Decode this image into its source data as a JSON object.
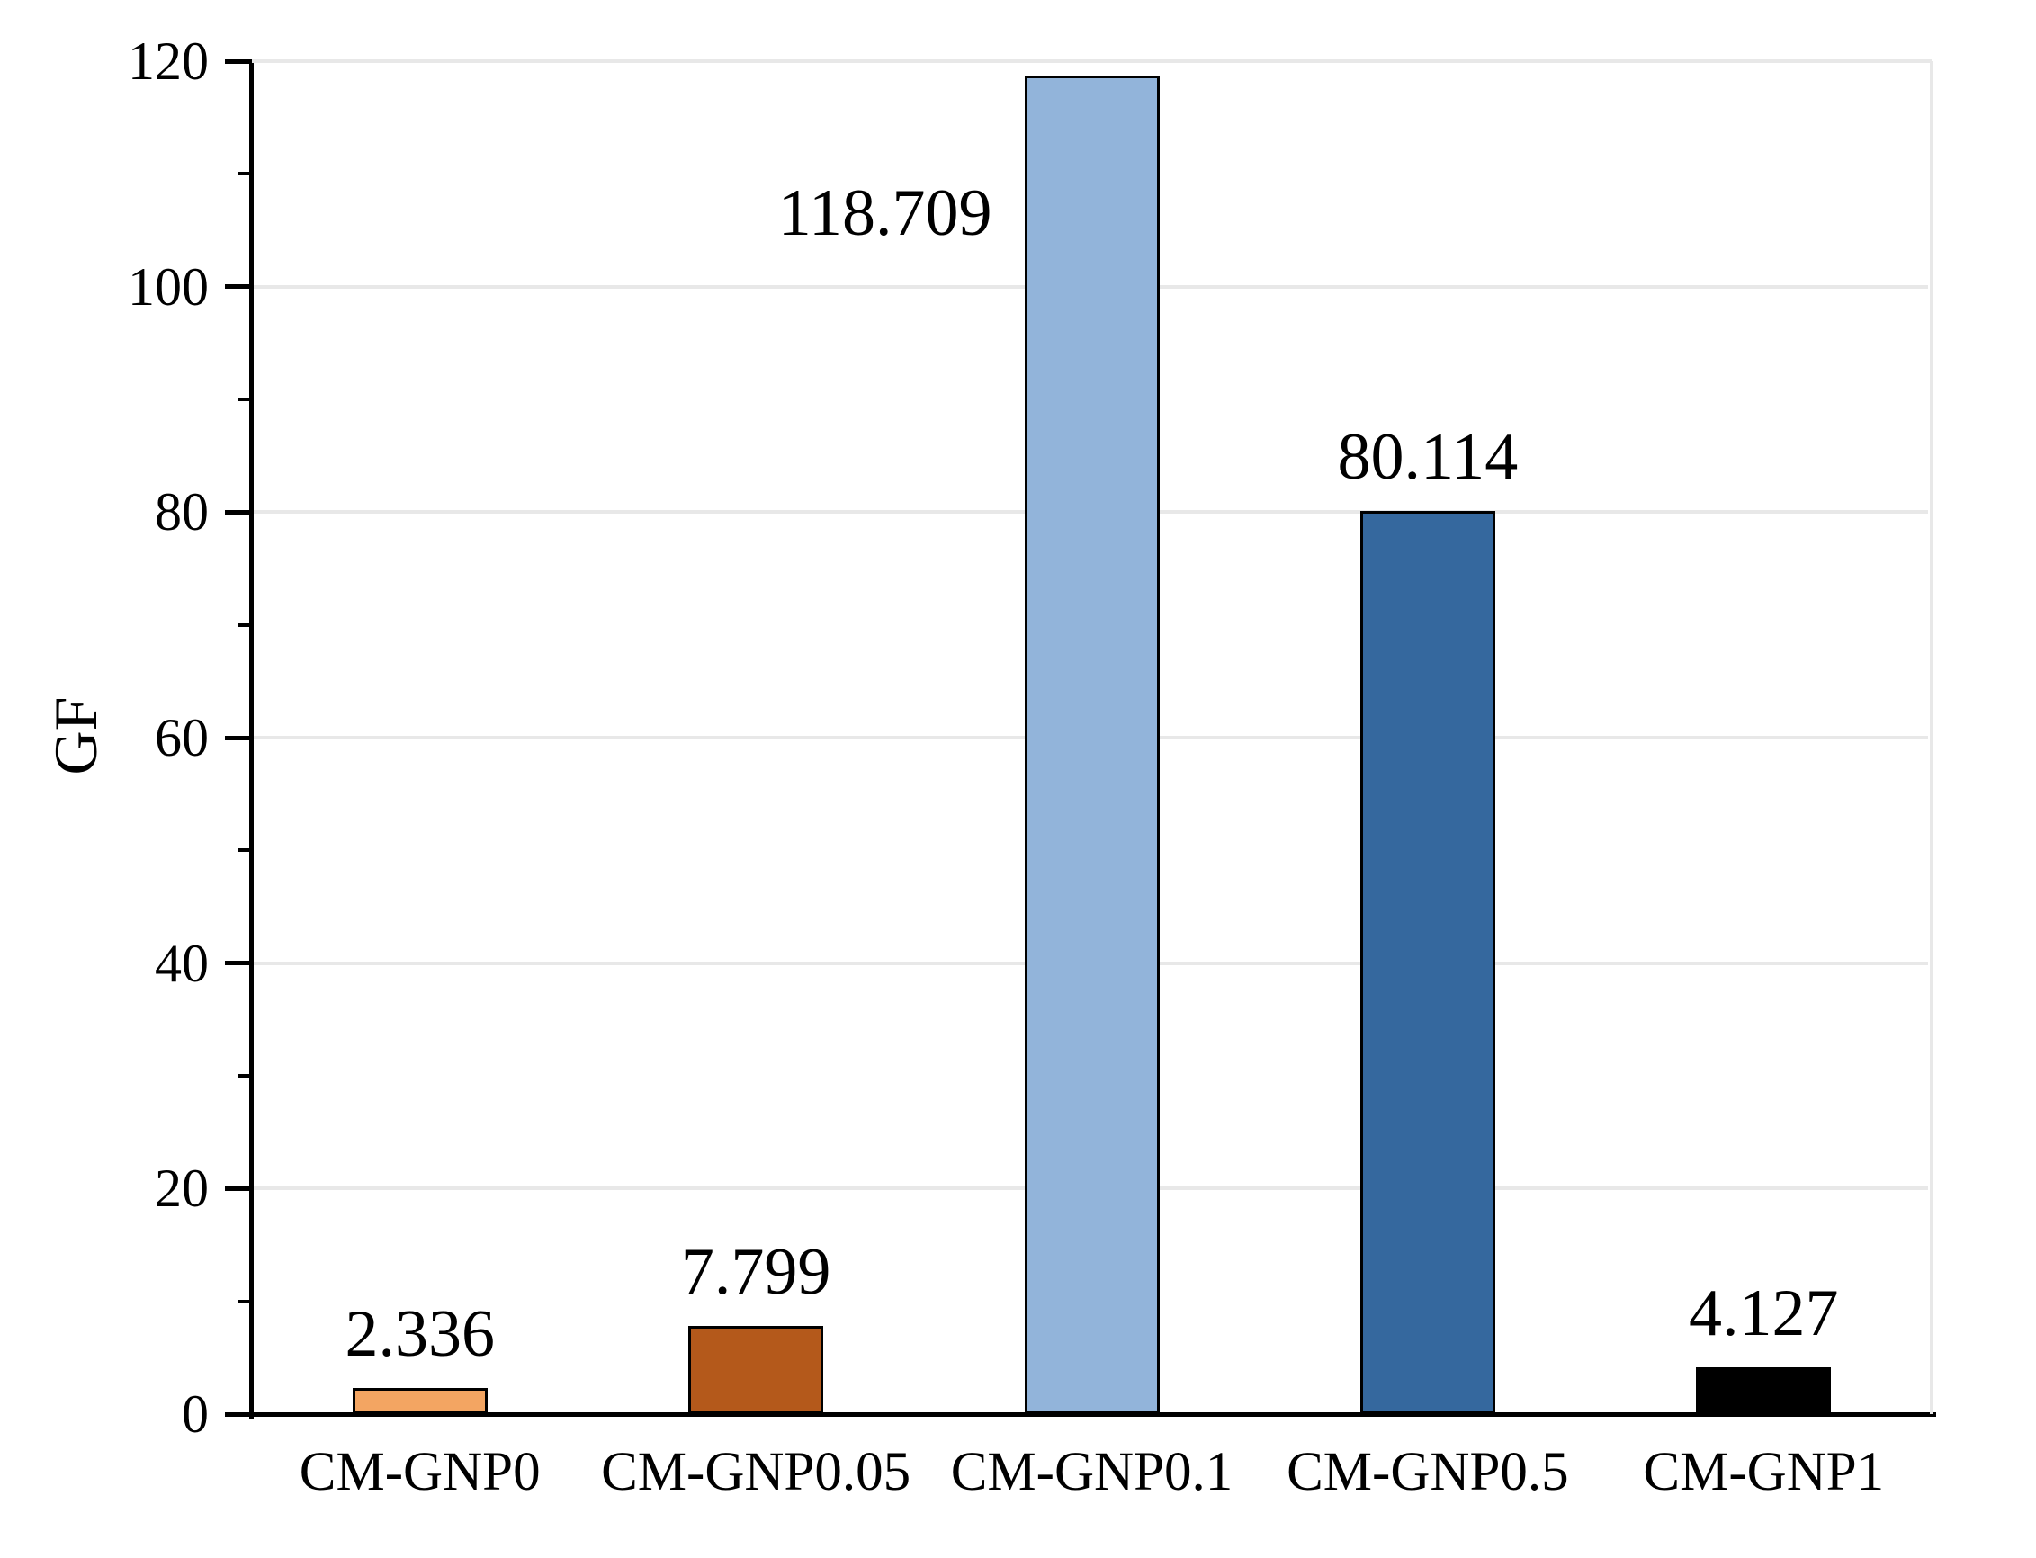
{
  "chart_data": {
    "type": "bar",
    "title": "",
    "xlabel": "",
    "ylabel": "GF",
    "categories": [
      "CM-GNP0",
      "CM-GNP0.05",
      "CM-GNP0.1",
      "CM-GNP0.5",
      "CM-GNP1"
    ],
    "values": [
      2.336,
      7.799,
      118.709,
      80.114,
      4.127
    ],
    "value_labels": [
      "2.336",
      "7.799",
      "118.709",
      "80.114",
      "4.127"
    ],
    "bar_colors": [
      "#F3A562",
      "#B4591B",
      "#92B4DA",
      "#35689E",
      "#000000"
    ],
    "bar_border_color": "#000000",
    "ylim": [
      0,
      120
    ],
    "yticks": [
      0,
      20,
      40,
      60,
      80,
      100,
      120
    ],
    "minor_yticks": [
      10,
      30,
      50,
      70,
      90,
      110
    ],
    "grid": "horizontal-major",
    "gridline_color": "#E8E8E8",
    "axis_color": "#000000",
    "legend": "none",
    "label_annotations": [
      {
        "category": "CM-GNP0.1",
        "placement": "left-of-bar"
      }
    ]
  }
}
